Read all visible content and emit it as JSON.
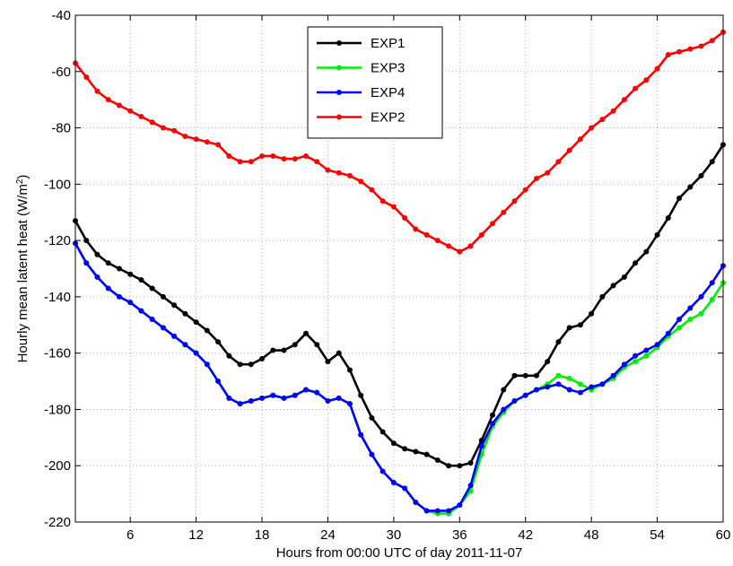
{
  "chart_data": {
    "type": "line",
    "title": "",
    "xlabel": "Hours from 00:00 UTC of day 2011-11-07",
    "ylabel": "Hourly mean latent heat (W/m",
    "ylabel_sup": "2",
    "ylabel_close": ")",
    "xlim": [
      1,
      60
    ],
    "ylim": [
      -220,
      -40
    ],
    "xticks": [
      6,
      12,
      18,
      24,
      30,
      36,
      42,
      48,
      54,
      60
    ],
    "yticks": [
      -220,
      -200,
      -180,
      -160,
      -140,
      -120,
      -100,
      -80,
      -60,
      -40
    ],
    "x_tick_labels": [
      "6",
      "12",
      "18",
      "24",
      "30",
      "36",
      "42",
      "48",
      "54",
      "60"
    ],
    "y_tick_labels": [
      "-220",
      "-200",
      "-180",
      "-160",
      "-140",
      "-120",
      "-100",
      "-80",
      "-60",
      "-40"
    ],
    "grid": true,
    "legend_position": "top-center",
    "x": [
      1,
      2,
      3,
      4,
      5,
      6,
      7,
      8,
      9,
      10,
      11,
      12,
      13,
      14,
      15,
      16,
      17,
      18,
      19,
      20,
      21,
      22,
      23,
      24,
      25,
      26,
      27,
      28,
      29,
      30,
      31,
      32,
      33,
      34,
      35,
      36,
      37,
      38,
      39,
      40,
      41,
      42,
      43,
      44,
      45,
      46,
      47,
      48,
      49,
      50,
      51,
      52,
      53,
      54,
      55,
      56,
      57,
      58,
      59,
      60
    ],
    "series": [
      {
        "name": "EXP1",
        "color": "#000000",
        "values": [
          -113,
          -120,
          -125,
          -128,
          -130,
          -132,
          -134,
          -137,
          -140,
          -143,
          -146,
          -149,
          -152,
          -156,
          -161,
          -164,
          -164,
          -162,
          -159,
          -159,
          -157,
          -153,
          -157,
          -163,
          -160,
          -166,
          -175,
          -183,
          -188,
          -192,
          -194,
          -195,
          -196,
          -198,
          -200,
          -200,
          -199,
          -191,
          -182,
          -173,
          -168,
          -168,
          -168,
          -163,
          -156,
          -151,
          -150,
          -146,
          -140,
          -136,
          -133,
          -128,
          -124,
          -118,
          -112,
          -105,
          -101,
          -97,
          -92,
          -86
        ]
      },
      {
        "name": "EXP3",
        "color": "#00ee00",
        "values": [
          -121,
          -128,
          -133,
          -137,
          -140,
          -142,
          -145,
          -148,
          -151,
          -154,
          -157,
          -160,
          -164,
          -170,
          -176,
          -178,
          -177,
          -176,
          -175,
          -176,
          -175,
          -173,
          -174,
          -177,
          -176,
          -178,
          -189,
          -196,
          -202,
          -206,
          -208,
          -213,
          -216,
          -217,
          -217,
          -214,
          -209,
          -196,
          -186,
          -181,
          -177,
          -175,
          -173,
          -171,
          -168,
          -169,
          -171,
          -173,
          -171,
          -169,
          -165,
          -163,
          -161,
          -158,
          -154,
          -151,
          -148,
          -146,
          -141,
          -135
        ]
      },
      {
        "name": "EXP4",
        "color": "#0000ff",
        "values": [
          -121,
          -128,
          -133,
          -137,
          -140,
          -142,
          -145,
          -148,
          -151,
          -154,
          -157,
          -160,
          -164,
          -170,
          -176,
          -178,
          -177,
          -176,
          -175,
          -176,
          -175,
          -173,
          -174,
          -177,
          -176,
          -178,
          -189,
          -196,
          -202,
          -206,
          -208,
          -213,
          -216,
          -216,
          -216,
          -214,
          -207,
          -193,
          -185,
          -180,
          -177,
          -175,
          -173,
          -172,
          -171,
          -173,
          -174,
          -172,
          -171,
          -168,
          -164,
          -161,
          -159,
          -157,
          -153,
          -148,
          -144,
          -140,
          -135,
          -129
        ]
      },
      {
        "name": "EXP2",
        "color": "#ff0000",
        "values": [
          -57,
          -62,
          -67,
          -70,
          -72,
          -74,
          -76,
          -78,
          -80,
          -81,
          -83,
          -84,
          -85,
          -86,
          -90,
          -92,
          -92,
          -90,
          -90,
          -91,
          -91,
          -90,
          -92,
          -95,
          -96,
          -97,
          -99,
          -102,
          -106,
          -108,
          -112,
          -116,
          -118,
          -120,
          -122,
          -124,
          -122,
          -118,
          -114,
          -110,
          -106,
          -102,
          -98,
          -96,
          -92,
          -88,
          -84,
          -80,
          -77,
          -74,
          -70,
          -66,
          -63,
          -59,
          -54,
          -53,
          -52,
          -51,
          -49,
          -46
        ]
      }
    ]
  },
  "legend_order": [
    "EXP1",
    "EXP3",
    "EXP4",
    "EXP2"
  ]
}
